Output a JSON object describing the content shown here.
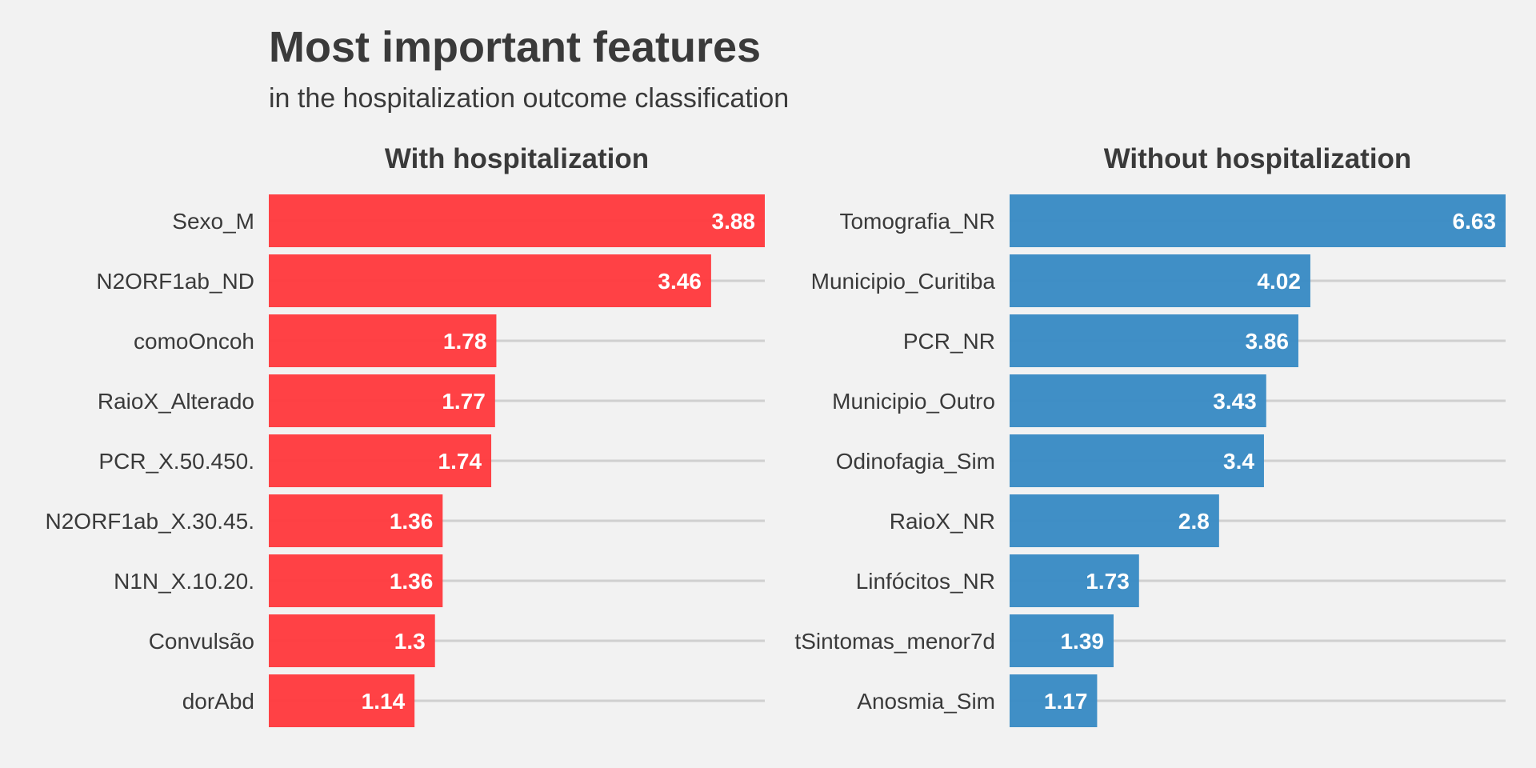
{
  "title": "Most important features",
  "subtitle": "in the hospitalization outcome classification",
  "colors": {
    "left_bar": "#ff3b3f",
    "right_bar": "#3a8bc4",
    "background": "#f2f2f2",
    "grid": "#d0d0d0"
  },
  "chart_data": [
    {
      "type": "bar",
      "orientation": "horizontal",
      "title": "With hospitalization",
      "xlabel": "",
      "ylabel": "",
      "xlim": [
        0,
        3.88
      ],
      "grid": "horizontal lines at categories",
      "categories": [
        "Sexo_M",
        "N2ORF1ab_ND",
        "comoOncoh",
        "RaioX_Alterado",
        "PCR_X.50.450.",
        "N2ORF1ab_X.30.45.",
        "N1N_X.10.20.",
        "Convulsão",
        "dorAbd"
      ],
      "values": [
        3.88,
        3.46,
        1.78,
        1.77,
        1.74,
        1.36,
        1.36,
        1.3,
        1.14
      ],
      "value_labels": [
        "3.88",
        "3.46",
        "1.78",
        "1.77",
        "1.74",
        "1.36",
        "1.36",
        "1.3",
        "1.14"
      ]
    },
    {
      "type": "bar",
      "orientation": "horizontal",
      "title": "Without hospitalization",
      "xlabel": "",
      "ylabel": "",
      "xlim": [
        0,
        6.63
      ],
      "grid": "horizontal lines at categories",
      "categories": [
        "Tomografia_NR",
        "Municipio_Curitiba",
        "PCR_NR",
        "Municipio_Outro",
        "Odinofagia_Sim",
        "RaioX_NR",
        "Linfócitos_NR",
        "tSintomas_menor7d",
        "Anosmia_Sim"
      ],
      "values": [
        6.63,
        4.02,
        3.86,
        3.43,
        3.4,
        2.8,
        1.73,
        1.39,
        1.17
      ],
      "value_labels": [
        "6.63",
        "4.02",
        "3.86",
        "3.43",
        "3.4",
        "2.8",
        "1.73",
        "1.39",
        "1.17"
      ]
    }
  ]
}
